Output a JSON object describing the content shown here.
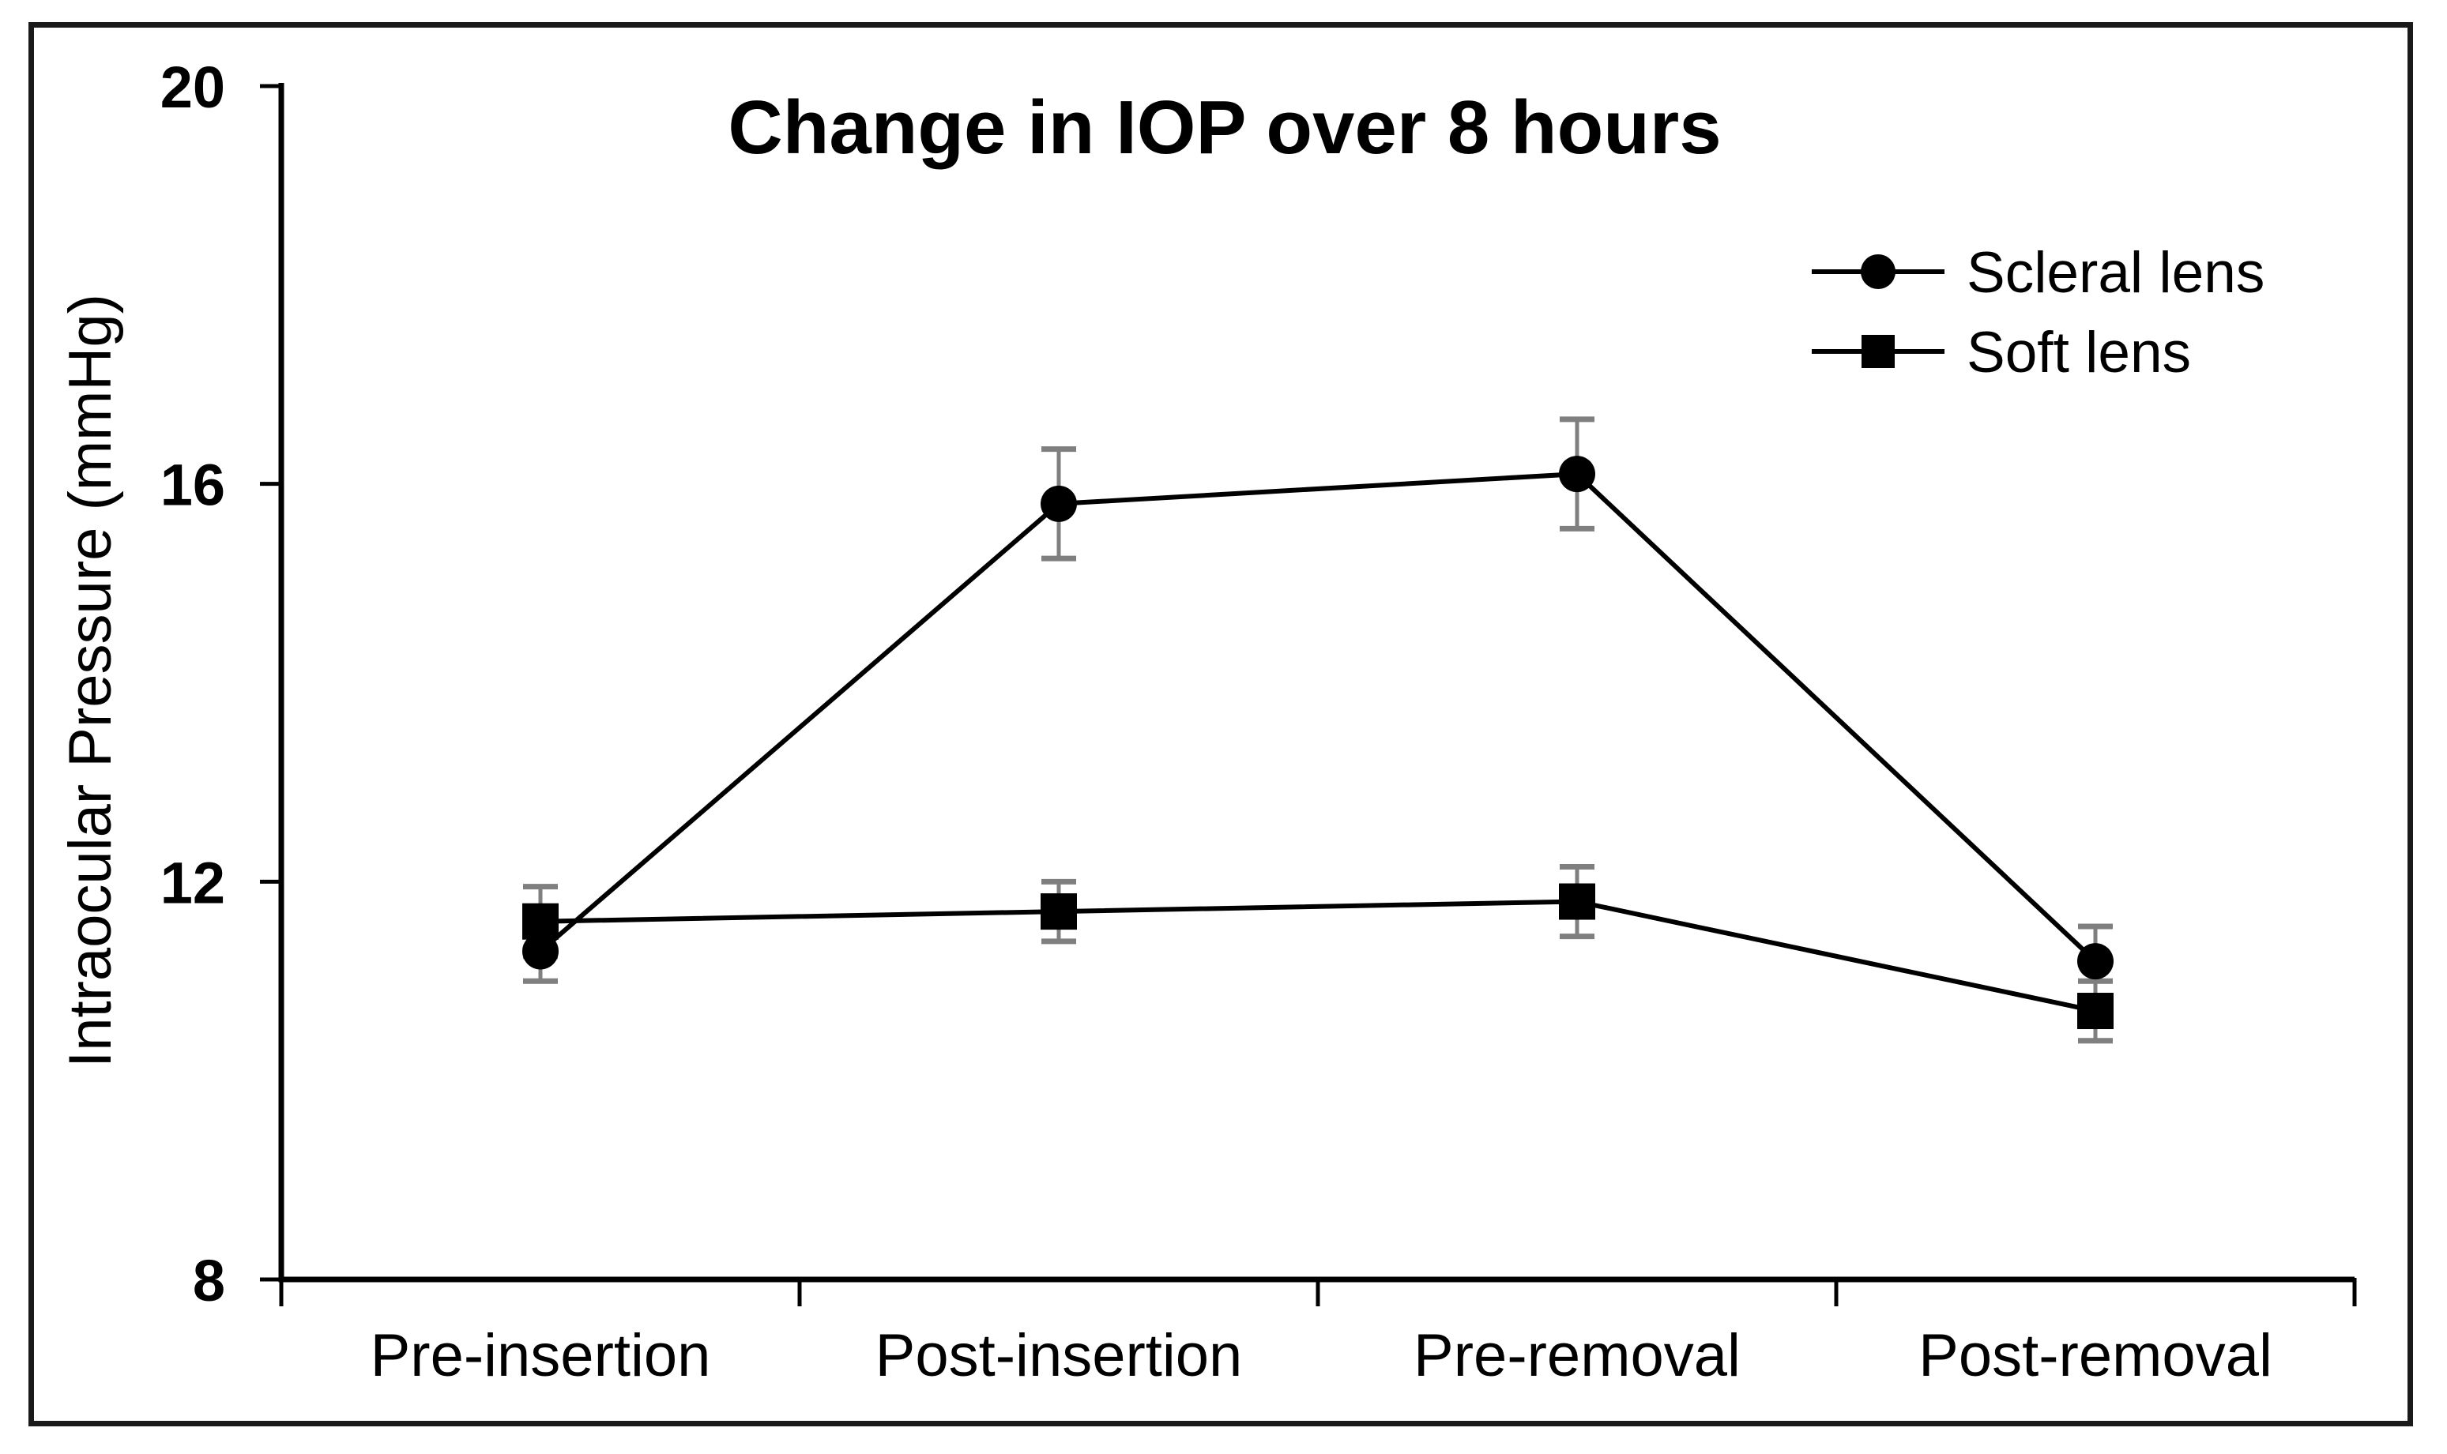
{
  "chart_data": {
    "type": "line",
    "title": "Change in IOP over 8 hours",
    "xlabel": "",
    "ylabel": "Intraocular Pressure (mmHg)",
    "categories": [
      "Pre-insertion",
      "Post-insertion",
      "Pre-removal",
      "Post-removal"
    ],
    "ylim": [
      8,
      20
    ],
    "y_ticks": [
      8,
      12,
      16,
      20
    ],
    "grid": false,
    "legend_position": "top-right",
    "series": [
      {
        "name": "Scleral lens",
        "marker": "circle",
        "values": [
          11.3,
          15.8,
          16.1,
          11.2
        ],
        "errors": [
          0.3,
          0.55,
          0.55,
          0.35
        ]
      },
      {
        "name": "Soft lens",
        "marker": "square",
        "values": [
          11.6,
          11.7,
          11.8,
          10.7
        ],
        "errors": [
          0.35,
          0.3,
          0.35,
          0.3
        ]
      }
    ],
    "colors": {
      "series": "#000000",
      "error_bar": "#7f7f7f",
      "axis": "#000000",
      "border": "#1a1a1a",
      "background": "#ffffff"
    }
  }
}
